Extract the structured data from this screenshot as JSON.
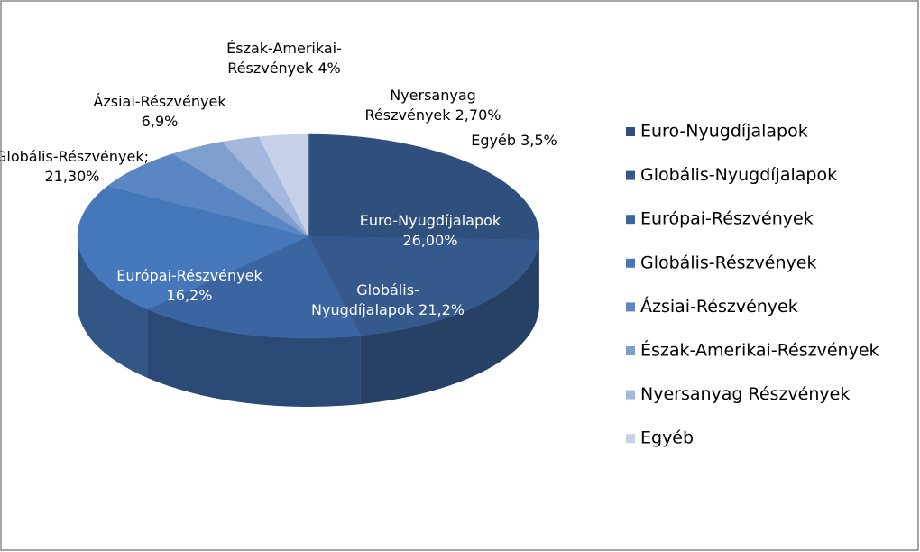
{
  "chart_data": {
    "type": "pie3d",
    "categories": [
      "Euro-Nyugdíjalapok",
      "Globális-Nyugdíjalapok",
      "Európai-Részvények",
      "Globális-Részvények",
      "Ázsiai-Részvények",
      "Észak-Amerikai-Részvények",
      "Nyersanyag Részvények",
      "Egyéb"
    ],
    "values": [
      26,
      21.2,
      16.2,
      21.3,
      6.9,
      4,
      2.7,
      3.5
    ],
    "value_labels": [
      "Euro-Nyugdíjalapok\n26,00%",
      "Globális-\nNyugdíjalapok 21,2%",
      "Európai-Részvények\n16,2%",
      "Globális-Részvények;\n21,30%",
      "Ázsiai-Részvények\n6,9%",
      "Észak-Amerikai-\nRészvények 4%",
      "Nyersanyag\nRészvények 2,70%",
      "Egyéb 3,5%"
    ],
    "colors": [
      "#2f4f7c",
      "#35598d",
      "#3b65a1",
      "#4577ba",
      "#5a87c3",
      "#7e9ece",
      "#a3b8dc",
      "#c5d1e8"
    ],
    "legend": "right"
  }
}
